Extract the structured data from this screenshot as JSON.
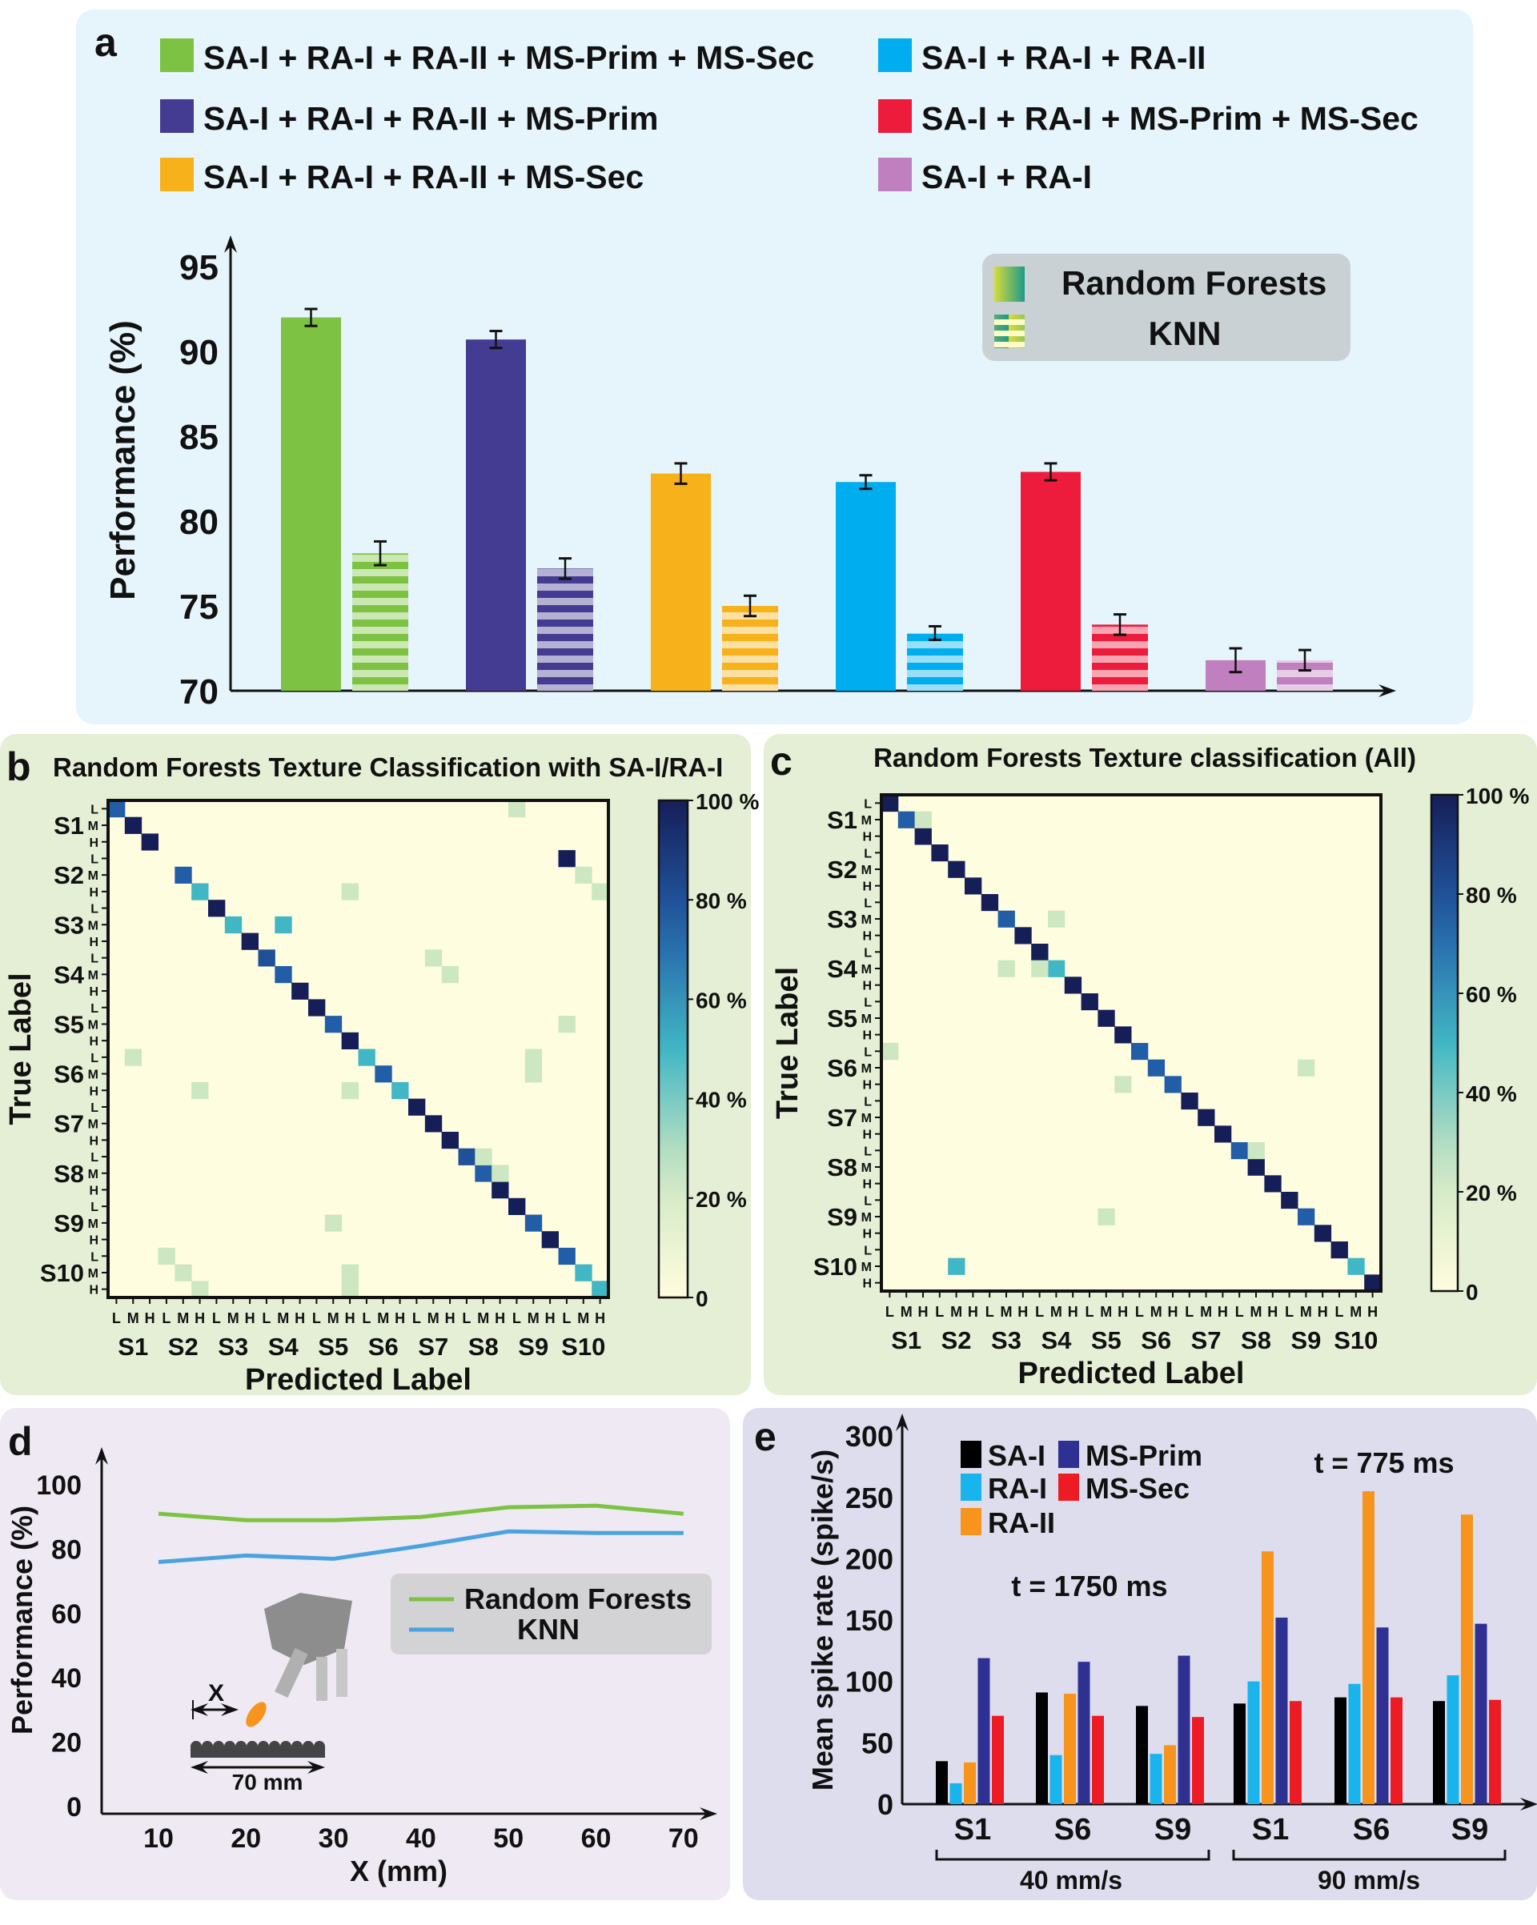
{
  "panel_labels": {
    "a": "a",
    "b": "b",
    "c": "c",
    "d": "d",
    "e": "e"
  },
  "chart_data": [
    {
      "panel": "a",
      "type": "bar",
      "ylabel": "Performance (%)",
      "ylim": [
        70,
        95
      ],
      "yticks": [
        70,
        75,
        80,
        85,
        90,
        95
      ],
      "grid": false,
      "legend_placement": "top",
      "combination_legend": [
        {
          "name": "SA-I + RA-I + RA-II + MS-Prim + MS-Sec",
          "color": "#7dc242"
        },
        {
          "name": "SA-I + RA-I + RA-II + MS-Prim",
          "color": "#443c92"
        },
        {
          "name": "SA-I + RA-I + RA-II + MS-Sec",
          "color": "#f7b11b"
        },
        {
          "name": "SA-I + RA-I + RA-II",
          "color": "#00aeef"
        },
        {
          "name": "SA-I + RA-I + MS-Prim + MS-Sec",
          "color": "#ed1c3c"
        },
        {
          "name": "SA-I + RA-I",
          "color": "#c07fbf"
        }
      ],
      "method_legend": {
        "placement": "top-right",
        "entries": [
          "Random Forests",
          "KNN"
        ],
        "knn_style": "striped"
      },
      "series": [
        {
          "name": "Random Forests",
          "values": [
            92.0,
            90.7,
            82.8,
            82.3,
            82.9,
            71.8
          ],
          "errors": [
            0.5,
            0.5,
            0.6,
            0.4,
            0.5,
            0.7
          ]
        },
        {
          "name": "KNN",
          "values": [
            78.1,
            77.2,
            75.0,
            73.4,
            73.9,
            71.8
          ],
          "errors": [
            0.7,
            0.6,
            0.6,
            0.4,
            0.6,
            0.6
          ]
        }
      ]
    },
    {
      "panel": "b",
      "type": "heatmap",
      "title": "Random Forests Texture Classification with SA-I/RA-I",
      "xlabel": "Predicted Label",
      "ylabel": "True Label",
      "textures": [
        "S1",
        "S2",
        "S3",
        "S4",
        "S5",
        "S6",
        "S7",
        "S8",
        "S9",
        "S10"
      ],
      "levels": [
        "L",
        "M",
        "H"
      ],
      "colorbar_ticks": [
        "0",
        "20 %",
        "40 %",
        "60 %",
        "80 %",
        "100 %"
      ],
      "colormap": "YlGnBu",
      "range": [
        0,
        100
      ],
      "diagonal": [
        75,
        100,
        100,
        0,
        75,
        50,
        100,
        50,
        100,
        80,
        75,
        100,
        100,
        75,
        100,
        50,
        75,
        50,
        100,
        100,
        100,
        80,
        75,
        100,
        100,
        75,
        100,
        75,
        50,
        50
      ],
      "off_diagonal": [
        [
          0,
          24,
          25
        ],
        [
          3,
          27,
          100
        ],
        [
          4,
          28,
          25
        ],
        [
          5,
          14,
          25
        ],
        [
          5,
          29,
          25
        ],
        [
          7,
          10,
          50
        ],
        [
          9,
          19,
          25
        ],
        [
          10,
          20,
          25
        ],
        [
          13,
          27,
          25
        ],
        [
          15,
          1,
          25
        ],
        [
          15,
          25,
          25
        ],
        [
          16,
          25,
          25
        ],
        [
          17,
          5,
          25
        ],
        [
          17,
          14,
          25
        ],
        [
          21,
          22,
          25
        ],
        [
          22,
          23,
          25
        ],
        [
          25,
          13,
          25
        ],
        [
          27,
          3,
          25
        ],
        [
          28,
          4,
          25
        ],
        [
          28,
          14,
          25
        ],
        [
          29,
          5,
          25
        ],
        [
          29,
          14,
          25
        ]
      ]
    },
    {
      "panel": "c",
      "type": "heatmap",
      "title": "Random Forests Texture classification (All)",
      "xlabel": "Predicted Label",
      "ylabel": "True Label",
      "textures": [
        "S1",
        "S2",
        "S3",
        "S4",
        "S5",
        "S6",
        "S7",
        "S8",
        "S9",
        "S10"
      ],
      "levels": [
        "L",
        "M",
        "H"
      ],
      "colorbar_ticks": [
        "0",
        "20 %",
        "40 %",
        "60 %",
        "80 %",
        "100 %"
      ],
      "colormap": "YlGnBu",
      "range": [
        0,
        100
      ],
      "diagonal": [
        100,
        75,
        100,
        100,
        100,
        100,
        100,
        75,
        100,
        100,
        50,
        100,
        100,
        100,
        100,
        75,
        75,
        75,
        100,
        100,
        100,
        75,
        100,
        100,
        100,
        75,
        100,
        100,
        50,
        100
      ],
      "off_diagonal": [
        [
          1,
          2,
          25
        ],
        [
          7,
          10,
          25
        ],
        [
          10,
          7,
          25
        ],
        [
          10,
          9,
          25
        ],
        [
          15,
          0,
          25
        ],
        [
          16,
          25,
          25
        ],
        [
          17,
          14,
          25
        ],
        [
          21,
          22,
          25
        ],
        [
          25,
          13,
          25
        ],
        [
          28,
          4,
          50
        ]
      ]
    },
    {
      "panel": "d",
      "type": "line",
      "xlabel": "X (mm)",
      "ylabel": "Performance (%)",
      "x": [
        10,
        20,
        30,
        40,
        50,
        60,
        70
      ],
      "xticks": [
        10,
        20,
        30,
        40,
        50,
        60,
        70
      ],
      "yticks": [
        0,
        20,
        40,
        60,
        80,
        100
      ],
      "ylim": [
        0,
        100
      ],
      "legend_placement": "center-right",
      "series": [
        {
          "name": "Random Forests",
          "color": "#7dc242",
          "values": [
            91,
            89,
            89,
            90,
            93,
            93.5,
            91
          ]
        },
        {
          "name": "KNN",
          "color": "#4aa3df",
          "values": [
            76,
            78,
            77,
            81,
            85.5,
            85,
            85
          ]
        }
      ],
      "inset": {
        "x_label": "X",
        "length_label": "70 mm"
      }
    },
    {
      "panel": "e",
      "type": "bar",
      "ylabel": "Mean spike rate (spike/s)",
      "ylim": [
        0,
        300
      ],
      "yticks": [
        0,
        50,
        100,
        150,
        200,
        250,
        300
      ],
      "categories": [
        "S1",
        "S6",
        "S9",
        "S1",
        "S6",
        "S9"
      ],
      "category_groups": [
        {
          "label": "40 mm/s"
        },
        {
          "label": "90 mm/s"
        }
      ],
      "annotations": [
        "t = 1750 ms",
        "t = 775 ms"
      ],
      "legend_placement": "top-left",
      "series": [
        {
          "name": "SA-I",
          "color": "#000000",
          "values": [
            35,
            91,
            80,
            82,
            87,
            84
          ]
        },
        {
          "name": "RA-I",
          "color": "#1ab4ec",
          "values": [
            17,
            40,
            41,
            100,
            98,
            105
          ]
        },
        {
          "name": "RA-II",
          "color": "#f7941d",
          "values": [
            34,
            90,
            48,
            206,
            255,
            236
          ]
        },
        {
          "name": "MS-Prim",
          "color": "#2e3192",
          "values": [
            119,
            116,
            121,
            152,
            144,
            147
          ]
        },
        {
          "name": "MS-Sec",
          "color": "#ed1c24",
          "values": [
            72,
            72,
            71,
            84,
            87,
            85
          ]
        }
      ]
    }
  ]
}
